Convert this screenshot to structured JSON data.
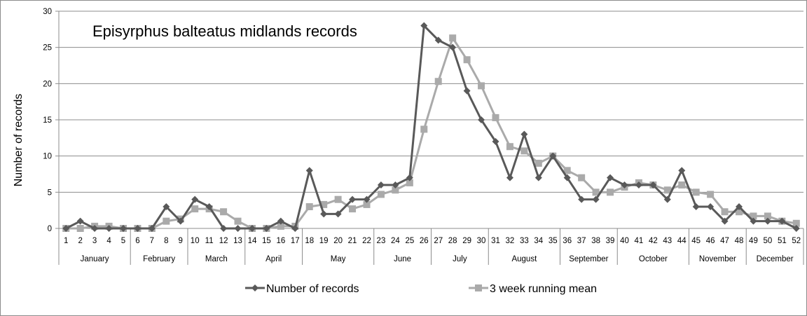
{
  "chart_data": {
    "type": "line",
    "title": "Episyrphus balteatus midlands records",
    "xlabel": "",
    "ylabel": "Number of records",
    "ylim": [
      0,
      30
    ],
    "yticks": [
      0,
      5,
      10,
      15,
      20,
      25,
      30
    ],
    "grid": true,
    "legend_position": "bottom",
    "x": [
      1,
      2,
      3,
      4,
      5,
      6,
      7,
      8,
      9,
      10,
      11,
      12,
      13,
      14,
      15,
      16,
      17,
      18,
      19,
      20,
      21,
      22,
      23,
      24,
      25,
      26,
      27,
      28,
      29,
      30,
      31,
      32,
      33,
      34,
      35,
      36,
      37,
      38,
      39,
      40,
      41,
      42,
      43,
      44,
      45,
      46,
      47,
      48,
      49,
      50,
      51,
      52
    ],
    "months": [
      {
        "name": "January",
        "start": 1,
        "end": 5
      },
      {
        "name": "February",
        "start": 6,
        "end": 9
      },
      {
        "name": "March",
        "start": 10,
        "end": 13
      },
      {
        "name": "April",
        "start": 14,
        "end": 17
      },
      {
        "name": "May",
        "start": 18,
        "end": 22
      },
      {
        "name": "June",
        "start": 23,
        "end": 26
      },
      {
        "name": "July",
        "start": 27,
        "end": 30
      },
      {
        "name": "August",
        "start": 31,
        "end": 35
      },
      {
        "name": "September",
        "start": 36,
        "end": 39
      },
      {
        "name": "October",
        "start": 40,
        "end": 44
      },
      {
        "name": "November",
        "start": 45,
        "end": 48
      },
      {
        "name": "December",
        "start": 49,
        "end": 52
      }
    ],
    "series": [
      {
        "name": "Number of records",
        "color": "#595959",
        "marker": "diamond",
        "values": [
          0,
          1,
          0,
          0,
          0,
          0,
          0,
          3,
          1,
          4,
          3,
          0,
          0,
          0,
          0,
          1,
          0,
          8,
          2,
          2,
          4,
          4,
          6,
          6,
          7,
          28,
          26,
          25,
          19,
          15,
          12,
          7,
          13,
          7,
          10,
          7,
          4,
          4,
          7,
          6,
          6,
          6,
          4,
          8,
          3,
          3,
          1,
          3,
          1,
          1,
          1,
          0
        ]
      },
      {
        "name": "3 week running mean",
        "color": "#aaaaaa",
        "marker": "square",
        "values": [
          0,
          0,
          0.3,
          0.3,
          0,
          0,
          0,
          1,
          1.3,
          2.7,
          2.7,
          2.3,
          1,
          0,
          0,
          0.3,
          0.3,
          3,
          3.3,
          4,
          2.7,
          3.3,
          4.7,
          5.3,
          6.3,
          13.7,
          20.3,
          26.3,
          23.3,
          19.7,
          15.3,
          11.3,
          10.7,
          9,
          10,
          8,
          7,
          5,
          5,
          5.7,
          6.3,
          6,
          5.3,
          6,
          5,
          4.7,
          2.3,
          2.3,
          1.7,
          1.7,
          1,
          0.7
        ]
      }
    ]
  }
}
